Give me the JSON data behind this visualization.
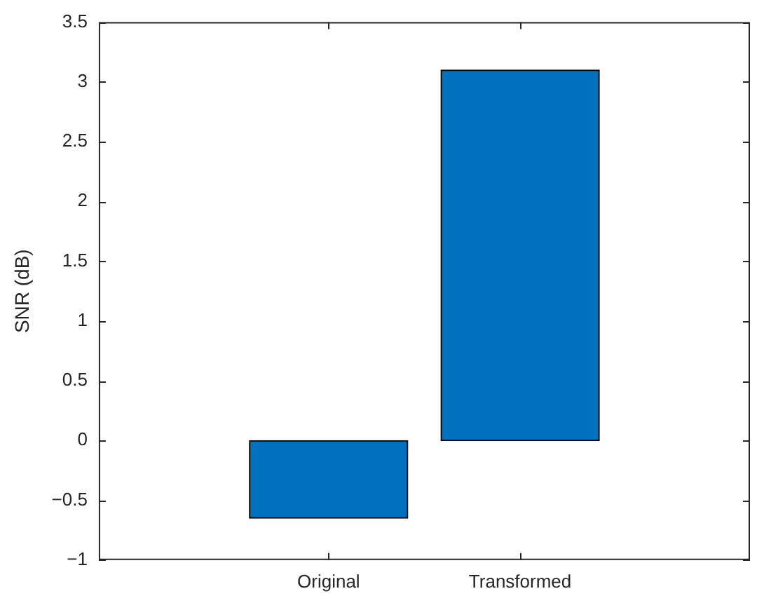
{
  "chart_data": {
    "type": "bar",
    "ylabel": "SNR (dB)",
    "categories": [
      "Original",
      "Transformed"
    ],
    "values": [
      -0.65,
      3.1
    ],
    "color": "#0072bd",
    "ylim": [
      -1,
      3.5
    ],
    "yticks": [
      -1,
      -0.5,
      0,
      0.5,
      1,
      1.5,
      2,
      2.5,
      3,
      3.5
    ],
    "grid": false,
    "legend": false
  }
}
